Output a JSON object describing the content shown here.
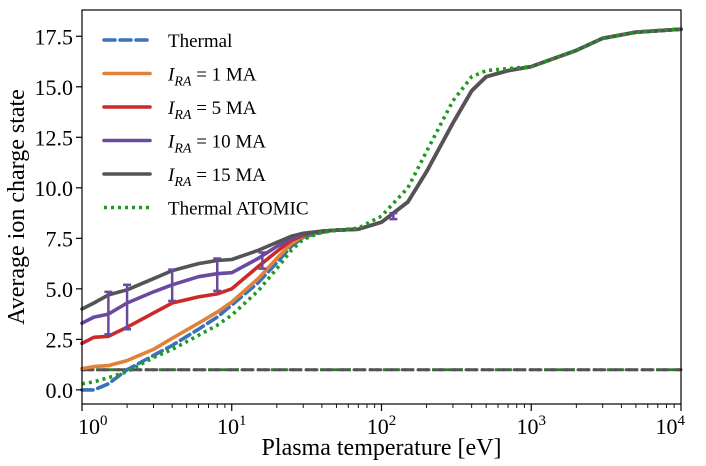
{
  "chart_data": {
    "type": "line",
    "title": "",
    "xlabel": "Plasma temperature [eV]",
    "ylabel": "Average ion charge state",
    "xscale": "log",
    "xlim": [
      1,
      10000
    ],
    "ylim": [
      -0.7,
      18.8
    ],
    "grid": false,
    "legend_position": "top-left",
    "x_ticks": [
      {
        "value": 1,
        "base": "10",
        "exp": "0"
      },
      {
        "value": 10,
        "base": "10",
        "exp": "1"
      },
      {
        "value": 100,
        "base": "10",
        "exp": "2"
      },
      {
        "value": 1000,
        "base": "10",
        "exp": "3"
      },
      {
        "value": 10000,
        "base": "10",
        "exp": "4"
      }
    ],
    "y_ticks": [
      {
        "value": 0,
        "label": "0.0"
      },
      {
        "value": 2.5,
        "label": "2.5"
      },
      {
        "value": 5,
        "label": "5.0"
      },
      {
        "value": 7.5,
        "label": "7.5"
      },
      {
        "value": 10,
        "label": "10.0"
      },
      {
        "value": 12.5,
        "label": "12.5"
      },
      {
        "value": 15,
        "label": "15.0"
      },
      {
        "value": 17.5,
        "label": "17.5"
      }
    ],
    "series": [
      {
        "name": "Thermal",
        "legend_prefix": "",
        "legend_sub": "",
        "legend_suffix": "Thermal",
        "color": "#3a72b8",
        "style": "dashed",
        "x": [
          1,
          1.2,
          1.5,
          2,
          3,
          4,
          6,
          8,
          10,
          15,
          20,
          25,
          30,
          40,
          50,
          70,
          100,
          150,
          200,
          300,
          400,
          500,
          700,
          1000,
          2000,
          3000,
          5000,
          10000
        ],
        "y": [
          0.0,
          0.0,
          0.3,
          1.0,
          1.7,
          2.2,
          3.0,
          3.6,
          4.2,
          5.3,
          6.3,
          7.1,
          7.55,
          7.8,
          7.9,
          7.95,
          8.3,
          9.3,
          10.8,
          13.2,
          14.8,
          15.5,
          15.8,
          16.0,
          16.8,
          17.4,
          17.7,
          17.85
        ]
      },
      {
        "name": "I_RA = 1 MA",
        "legend_prefix": "I",
        "legend_sub": "RA",
        "legend_suffix": " = 1 MA",
        "color": "#e0823a",
        "style": "solid",
        "x": [
          1,
          1.2,
          1.5,
          2,
          3,
          4,
          6,
          8,
          10,
          15,
          20,
          25,
          30,
          40,
          50,
          70,
          100,
          150,
          200,
          300,
          400,
          500,
          700,
          1000,
          2000,
          3000,
          5000,
          10000
        ],
        "y": [
          1.05,
          1.15,
          1.2,
          1.45,
          2.0,
          2.55,
          3.3,
          3.85,
          4.35,
          5.5,
          6.5,
          7.25,
          7.6,
          7.85,
          7.9,
          7.95,
          8.3,
          9.3,
          10.8,
          13.2,
          14.8,
          15.5,
          15.8,
          16.0,
          16.8,
          17.4,
          17.7,
          17.85
        ]
      },
      {
        "name": "I_RA = 5 MA",
        "legend_prefix": "I",
        "legend_sub": "RA",
        "legend_suffix": " = 5 MA",
        "color": "#cc2a2a",
        "style": "solid",
        "x": [
          1,
          1.2,
          1.5,
          2,
          3,
          4,
          6,
          8,
          10,
          15,
          20,
          25,
          30,
          40,
          50,
          70,
          100,
          150,
          200,
          300,
          400,
          500,
          700,
          1000,
          2000,
          3000,
          5000,
          10000
        ],
        "y": [
          2.3,
          2.6,
          2.65,
          3.1,
          3.8,
          4.3,
          4.6,
          4.75,
          5.0,
          6.1,
          6.85,
          7.4,
          7.65,
          7.85,
          7.9,
          7.95,
          8.3,
          9.3,
          10.8,
          13.2,
          14.8,
          15.5,
          15.8,
          16.0,
          16.8,
          17.4,
          17.7,
          17.85
        ]
      },
      {
        "name": "I_RA = 10 MA",
        "legend_prefix": "I",
        "legend_sub": "RA",
        "legend_suffix": " = 10 MA",
        "color": "#6a4aa0",
        "style": "solid",
        "x": [
          1,
          1.2,
          1.5,
          2,
          3,
          4,
          6,
          8,
          10,
          15,
          20,
          25,
          30,
          40,
          50,
          70,
          100,
          150,
          200,
          300,
          400,
          500,
          700,
          1000,
          2000,
          3000,
          5000,
          10000
        ],
        "y": [
          3.3,
          3.6,
          3.75,
          4.3,
          4.85,
          5.2,
          5.6,
          5.75,
          5.8,
          6.5,
          7.1,
          7.5,
          7.7,
          7.85,
          7.9,
          7.95,
          8.3,
          9.3,
          10.8,
          13.2,
          14.8,
          15.5,
          15.8,
          16.0,
          16.8,
          17.4,
          17.7,
          17.85
        ]
      },
      {
        "name": "I_RA = 15 MA",
        "legend_prefix": "I",
        "legend_sub": "RA",
        "legend_suffix": " = 15 MA",
        "color": "#555455",
        "style": "solid",
        "x": [
          1,
          1.2,
          1.5,
          2,
          3,
          4,
          6,
          8,
          10,
          15,
          20,
          25,
          30,
          40,
          50,
          70,
          100,
          150,
          200,
          300,
          400,
          500,
          700,
          1000,
          2000,
          3000,
          5000,
          10000
        ],
        "y": [
          4.0,
          4.3,
          4.7,
          4.95,
          5.5,
          5.9,
          6.25,
          6.4,
          6.45,
          6.9,
          7.3,
          7.6,
          7.75,
          7.85,
          7.9,
          7.95,
          8.3,
          9.3,
          10.8,
          13.2,
          14.8,
          15.5,
          15.8,
          16.0,
          16.8,
          17.4,
          17.7,
          17.85
        ]
      },
      {
        "name": "Thermal ATOMIC",
        "legend_prefix": "",
        "legend_sub": "",
        "legend_suffix": "Thermal ATOMIC",
        "color": "#1e9a1e",
        "style": "dotted",
        "x": [
          1,
          1.2,
          1.5,
          2,
          3,
          4,
          6,
          8,
          10,
          15,
          20,
          25,
          30,
          40,
          50,
          70,
          100,
          150,
          200,
          300,
          400,
          500,
          700,
          1000,
          2000,
          3000,
          5000,
          10000
        ],
        "y": [
          0.3,
          0.4,
          0.6,
          0.9,
          1.6,
          2.0,
          2.7,
          3.2,
          3.7,
          4.9,
          6.0,
          6.9,
          7.45,
          7.8,
          7.9,
          8.0,
          8.6,
          10.0,
          11.8,
          14.3,
          15.5,
          15.8,
          15.9,
          16.0,
          16.8,
          17.4,
          17.7,
          17.85
        ]
      }
    ],
    "baseline_series": [
      {
        "name": "Thermal ATOMIC baseline",
        "color": "#1e9a1e",
        "style": "dotted",
        "x": [
          1,
          10000
        ],
        "y": [
          1.0,
          1.0
        ]
      },
      {
        "name": "I_RA baseline",
        "color": "#555455",
        "style": "dashed",
        "x": [
          1,
          10000
        ],
        "y": [
          1.0,
          1.0
        ]
      }
    ],
    "error_bars": [
      {
        "x": 1.5,
        "low": 2.75,
        "high": 4.85
      },
      {
        "x": 2.0,
        "low": 3.0,
        "high": 5.2
      },
      {
        "x": 4.0,
        "low": 4.4,
        "high": 5.95
      },
      {
        "x": 8.0,
        "low": 4.9,
        "high": 6.5
      },
      {
        "x": 16.0,
        "low": 6.0,
        "high": 6.8
      },
      {
        "x": 120.0,
        "low": 8.45,
        "high": 8.75
      }
    ],
    "error_bar_color": "#6a4aa0"
  }
}
